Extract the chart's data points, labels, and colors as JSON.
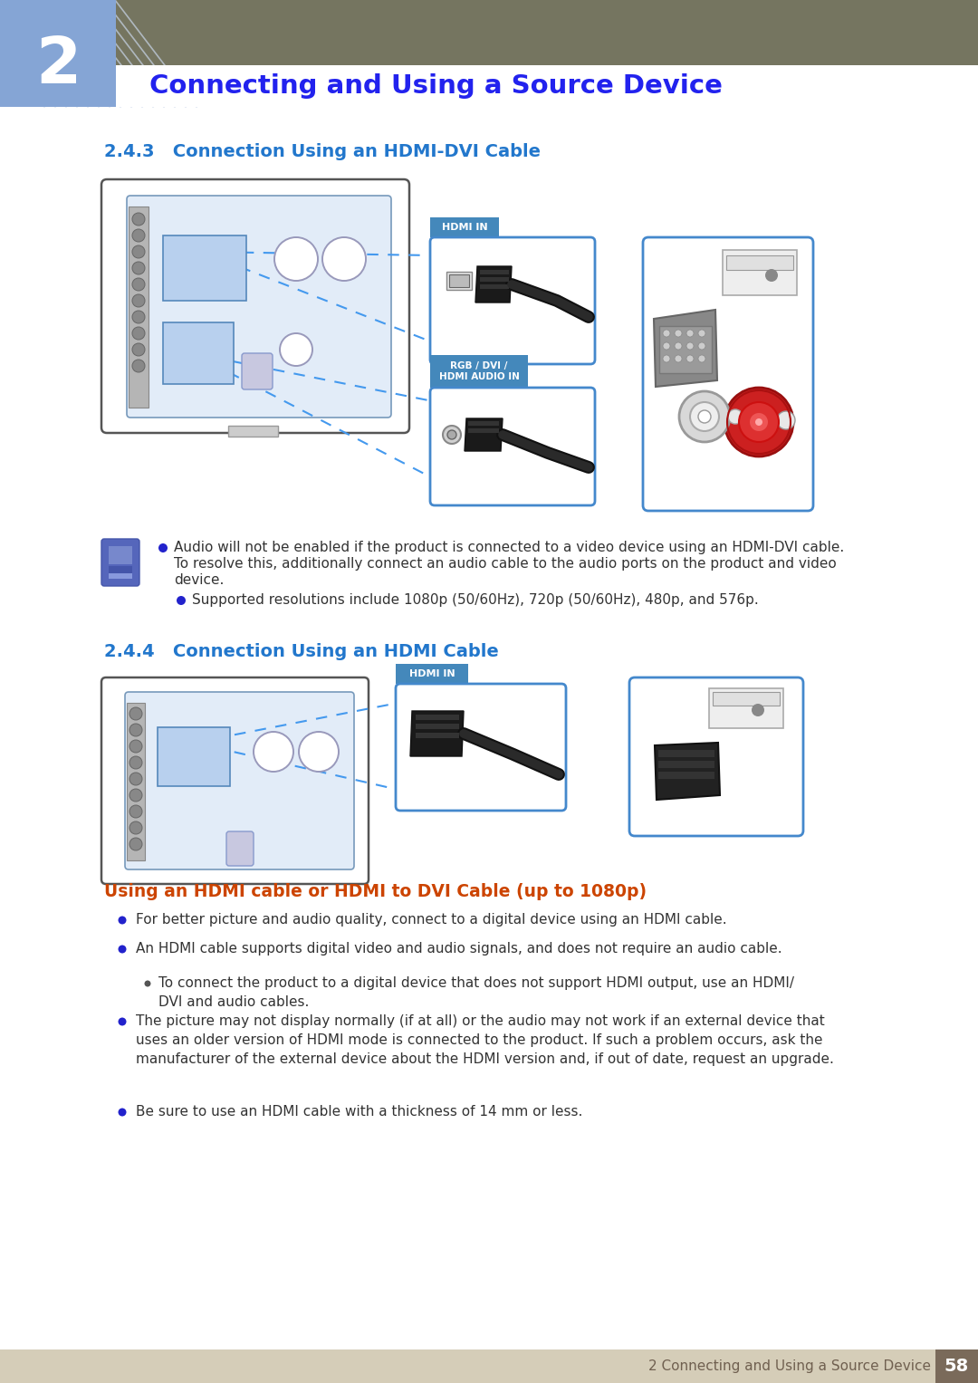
{
  "bg_color": "#ffffff",
  "header_bar_color": "#757560",
  "chapter_box_color": "#85a5d5",
  "chapter_number": "2",
  "chapter_title": "Connecting and Using a Source Device",
  "chapter_title_color": "#2222ee",
  "section_243_title": "2.4.3   Connection Using an HDMI-DVI Cable",
  "section_244_title": "2.4.4   Connection Using an HDMI Cable",
  "section_title_color": "#2277cc",
  "hdmi_in_label_bg": "#4488bb",
  "hdmi_in_label_text": "HDMI IN",
  "rgb_label_bg": "#4488bb",
  "rgb_label_text": "RGB / DVI /\nHDMI AUDIO IN",
  "connector_box_color": "#4488cc",
  "body_text_color": "#333333",
  "bullet_color": "#2222cc",
  "note_icon_color": "#4466bb",
  "orange_section_title": "Using an HDMI cable or HDMI to DVI Cable (up to 1080p)",
  "orange_section_color": "#cc4400",
  "footer_bg": "#d5cdb8",
  "footer_text_color": "#706050",
  "footer_page_bg": "#7a6a5a",
  "footer_page_color": "#ffffff",
  "footer_text": "2 Connecting and Using a Source Device",
  "footer_page": "58",
  "note_text_1a": "Audio will not be enabled if the product is connected to a video device using an HDMI-DVI cable.",
  "note_text_1b": "To resolve this, additionally connect an audio cable to the audio ports on the product and video",
  "note_text_1c": "device.",
  "note_text_2": "Supported resolutions include 1080p (50/60Hz), 720p (50/60Hz), 480p, and 576p.",
  "bullet_bottom": [
    "For better picture and audio quality, connect to a digital device using an HDMI cable.",
    "An HDMI cable supports digital video and audio signals, and does not require an audio cable.",
    "sub|To connect the product to a digital device that does not support HDMI output, use an HDMI/\nDVI and audio cables.",
    "The picture may not display normally (if at all) or the audio may not work if an external device that\nuses an older version of HDMI mode is connected to the product. If such a problem occurs, ask the\nmanufacturer of the external device about the HDMI version and, if out of date, request an upgrade.",
    "Be sure to use an HDMI cable with a thickness of 14 mm or less."
  ]
}
